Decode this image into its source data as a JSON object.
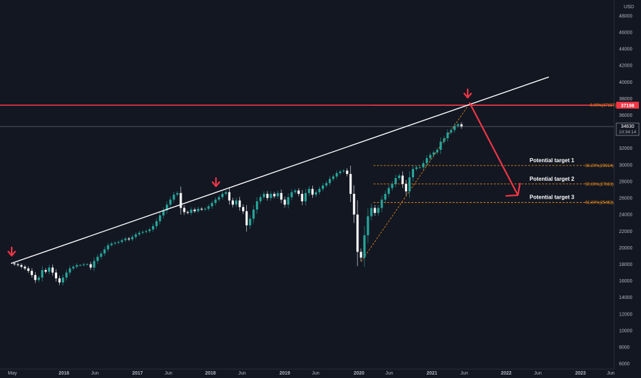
{
  "chart_data": {
    "type": "line",
    "currency": "USD",
    "y_ticks": [
      6000,
      8000,
      10000,
      12000,
      14000,
      16000,
      18000,
      20000,
      22000,
      24000,
      26000,
      28000,
      30000,
      32000,
      34000,
      36000,
      38000,
      40000,
      42000,
      44000,
      46000,
      48000
    ],
    "ylim": [
      5600,
      48900
    ],
    "x_ticks": [
      "May",
      "2016",
      "Jun",
      "2017",
      "Jun",
      "2018",
      "Jun",
      "2019",
      "Jun",
      "2020",
      "Jun",
      "2021",
      "Jun",
      "2022",
      "Jun",
      "2023",
      "Jun"
    ],
    "series": [
      {
        "values": [
          18100,
          18000,
          17900,
          17700,
          17500,
          17200,
          16700,
          16100,
          16400,
          17300,
          17100,
          17600,
          17000,
          16300,
          15800,
          16400,
          17000,
          17500,
          17700,
          17900,
          17900,
          18000,
          18000,
          17600,
          18400,
          18900,
          19300,
          19800,
          20300,
          20500,
          20600,
          20700,
          20900,
          21100,
          21000,
          21300,
          21600,
          21800,
          21900,
          22000,
          22200,
          22600,
          23200,
          23900,
          24500,
          25200,
          25800,
          26400,
          26600,
          24800,
          24300,
          24200,
          24600,
          24400,
          24700,
          24600,
          24700,
          25000,
          25400,
          25800,
          26100,
          26500,
          26700,
          25700,
          25200,
          25700,
          24900,
          24400,
          22700,
          23500,
          24600,
          25600,
          26100,
          26500,
          26000,
          26500,
          26200,
          26600,
          25800,
          25200,
          26100,
          26700,
          26900,
          26500,
          25600,
          26600,
          27100,
          26400,
          26700,
          27100,
          27500,
          27800,
          28300,
          28600,
          29000,
          29200,
          29300,
          28900,
          26500,
          24000,
          19500,
          18800,
          21500,
          23800,
          24800,
          24200,
          24800,
          25800,
          26500,
          27200,
          27700,
          28400,
          28700,
          27700,
          26800,
          28500,
          29500,
          29700,
          29700,
          30200,
          30800,
          31200,
          31500,
          31800,
          32800,
          33200,
          33900,
          34200,
          34700,
          34900,
          34600
        ]
      }
    ],
    "current_price": {
      "label": "34630",
      "time": "10:34:14",
      "value": 34630
    },
    "resistance_level": {
      "value": 37198,
      "label": "37198",
      "fib_label": "0.00%(37157)"
    },
    "fib_levels": [
      {
        "label": "38.20%(29914)",
        "value": 29914
      },
      {
        "label": "50.00%(27683)",
        "value": 27683
      },
      {
        "label": "61.80%(25452)",
        "value": 25452
      }
    ],
    "targets": [
      {
        "label": "Potential target 1",
        "value": 29914
      },
      {
        "label": "Potential target 2",
        "value": 27683
      },
      {
        "label": "Potential target 3",
        "value": 25452
      }
    ],
    "trendline": {
      "start": {
        "date": "2015-05",
        "value": 18100
      },
      "end": {
        "date": "2022-08",
        "value": 40600
      }
    },
    "colors": {
      "background": "#131722",
      "candle_up": "#26a69a",
      "candle_alt": "#ffffff",
      "resistance": "#f23645",
      "fib": "#f7931a",
      "trendline": "#ffffff",
      "axis_text": "#b2b5be",
      "price_line": "#787b86"
    }
  }
}
